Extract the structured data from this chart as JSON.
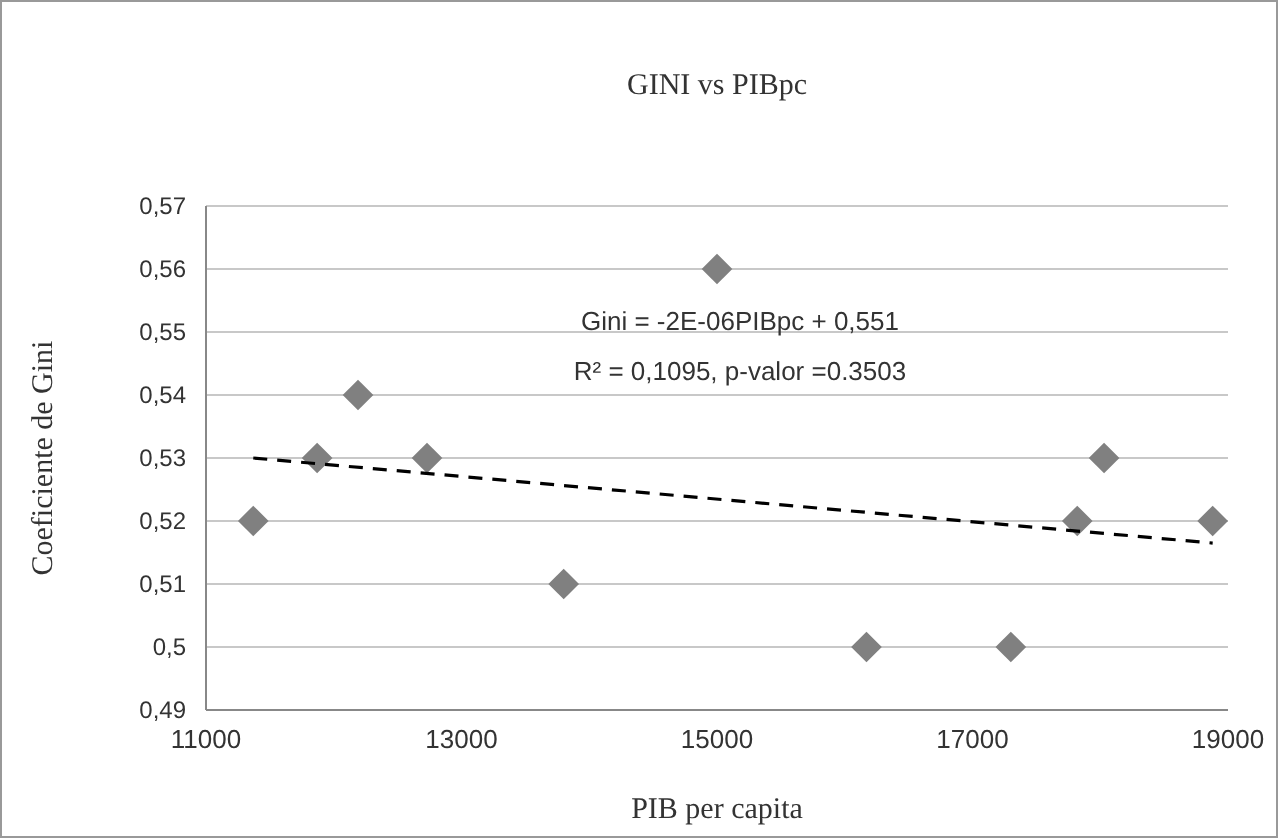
{
  "chart_data": {
    "type": "scatter",
    "title": "GINI vs PIBpc",
    "xlabel": "PIB per capita",
    "ylabel": "Coeficiente de Gini",
    "x": [
      11370,
      11870,
      12190,
      12730,
      13800,
      15000,
      16170,
      17300,
      17820,
      18030,
      18880
    ],
    "series": [
      {
        "color": "#808080",
        "marker": "diamond",
        "values": [
          0.52,
          0.53,
          0.54,
          0.53,
          0.51,
          0.56,
          0.5,
          0.5,
          0.52,
          0.53,
          0.52
        ]
      },
      {
        "type": "line",
        "color": "#000000",
        "line_style": "dashed",
        "marker": "none",
        "x": [
          11370,
          18880
        ],
        "values": [
          0.53,
          0.5165
        ]
      }
    ],
    "xlim": [
      11000,
      19000
    ],
    "xticks": [
      11000,
      13000,
      15000,
      17000,
      19000
    ],
    "ylim": [
      0.49,
      0.57
    ],
    "yticks": [
      {
        "value": 0.49,
        "label": "0,49"
      },
      {
        "value": 0.5,
        "label": "0,5"
      },
      {
        "value": 0.51,
        "label": "0,51"
      },
      {
        "value": 0.52,
        "label": "0,52"
      },
      {
        "value": 0.53,
        "label": "0,53"
      },
      {
        "value": 0.54,
        "label": "0,54"
      },
      {
        "value": 0.55,
        "label": "0,55"
      },
      {
        "value": 0.56,
        "label": "0,56"
      },
      {
        "value": 0.57,
        "label": "0,57"
      }
    ],
    "grid": "y",
    "annotations": [
      "Gini = -2E-06PIBpc + 0,551",
      "R² = 0,1095, p-valor =0.3503"
    ]
  }
}
